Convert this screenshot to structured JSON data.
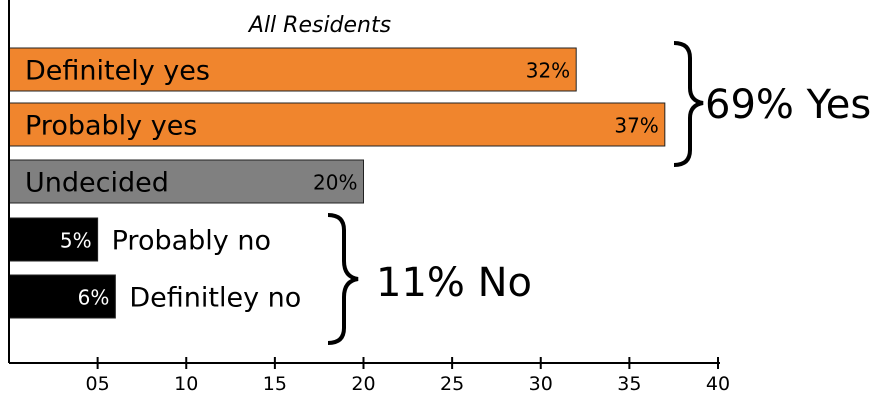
{
  "chart_data": {
    "type": "bar",
    "orientation": "horizontal",
    "title": "All Residents",
    "categories": [
      "Definitely yes",
      "Probably yes",
      "Undecided",
      "Probably no",
      "Definitley no"
    ],
    "values": [
      32,
      37,
      20,
      5,
      6
    ],
    "value_labels": [
      "32%",
      "37%",
      "20%",
      "5%",
      "6%"
    ],
    "bar_colors": [
      "#f0852d",
      "#f0852d",
      "#808080",
      "#000000",
      "#000000"
    ],
    "xlim": [
      0,
      40
    ],
    "xticks": [
      5,
      10,
      15,
      20,
      25,
      30,
      35,
      40
    ],
    "xtick_labels": [
      "05",
      "10",
      "15",
      "20",
      "25",
      "30",
      "35",
      "40"
    ],
    "xlabel": "",
    "ylabel": "",
    "grid": false,
    "legend": "none",
    "annotations": [
      {
        "text": "69% Yes",
        "groups": [
          0,
          1
        ]
      },
      {
        "text": "11% No",
        "groups": [
          3,
          4
        ]
      }
    ]
  }
}
